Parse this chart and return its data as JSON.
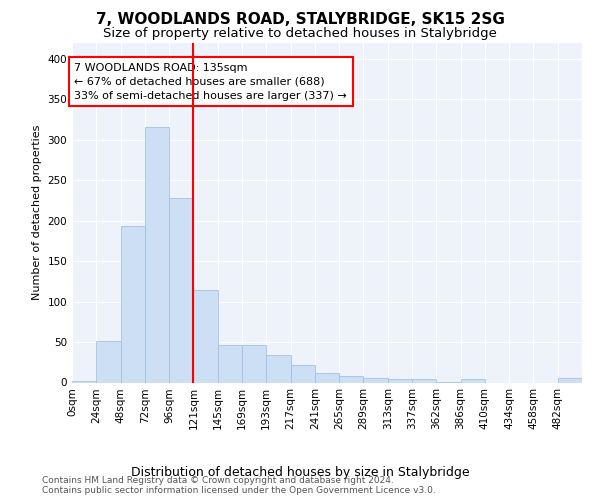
{
  "title": "7, WOODLANDS ROAD, STALYBRIDGE, SK15 2SG",
  "subtitle": "Size of property relative to detached houses in Stalybridge",
  "xlabel": "Distribution of detached houses by size in Stalybridge",
  "ylabel": "Number of detached properties",
  "bar_color": "#ccdff5",
  "bar_edge_color": "#99bbdd",
  "background_color": "#eef2fb",
  "grid_color": "#ffffff",
  "property_line_x": 4,
  "property_line_color": "red",
  "annotation_text": "7 WOODLANDS ROAD: 135sqm\n← 67% of detached houses are smaller (688)\n33% of semi-detached houses are larger (337) →",
  "annotation_box_color": "red",
  "bin_labels": [
    "0sqm",
    "24sqm",
    "48sqm",
    "72sqm",
    "96sqm",
    "121sqm",
    "145sqm",
    "169sqm",
    "193sqm",
    "217sqm",
    "241sqm",
    "265sqm",
    "289sqm",
    "313sqm",
    "337sqm",
    "362sqm",
    "386sqm",
    "410sqm",
    "434sqm",
    "458sqm",
    "482sqm"
  ],
  "bar_heights": [
    2,
    51,
    193,
    315,
    228,
    114,
    46,
    46,
    34,
    22,
    12,
    8,
    5,
    4,
    4,
    1,
    4,
    0,
    0,
    0,
    5
  ],
  "ylim": [
    0,
    420
  ],
  "yticks": [
    0,
    50,
    100,
    150,
    200,
    250,
    300,
    350,
    400
  ],
  "footer_text": "Contains HM Land Registry data © Crown copyright and database right 2024.\nContains public sector information licensed under the Open Government Licence v3.0.",
  "title_fontsize": 11,
  "subtitle_fontsize": 9.5,
  "xlabel_fontsize": 9,
  "ylabel_fontsize": 8,
  "tick_fontsize": 7.5,
  "annotation_fontsize": 8,
  "footer_fontsize": 6.5
}
